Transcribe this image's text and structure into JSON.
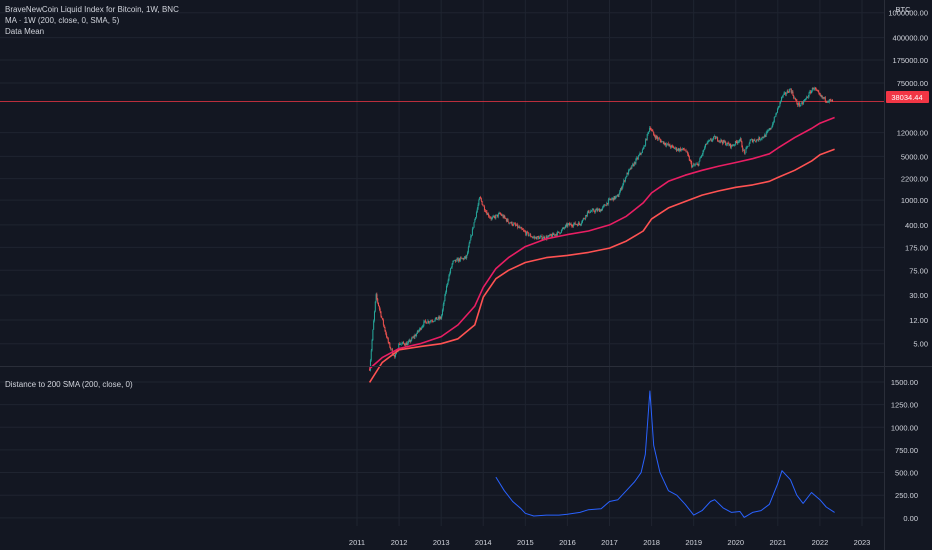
{
  "main_pane": {
    "title": "BraveNewCoin Liquid Index for Bitcoin, 1W, BNC",
    "ma_legend": "MA · 1W (200, close, 0, SMA, 5)",
    "mean_legend": "Data Mean",
    "currency": "BTC",
    "price_label": "38034.44"
  },
  "sub_pane": {
    "legend": "Distance to 200 SMA (200, close, 0)"
  },
  "colors": {
    "background": "#131722",
    "grid": "#1f2430",
    "text": "#d1d4dc",
    "ma_line": "#e91e63",
    "mean_line": "#ff5252",
    "candle_up": "#26a69a",
    "candle_down": "#ef5350",
    "distance_line": "#2962ff",
    "price_line": "#f23645"
  },
  "chart_data": [
    {
      "type": "candlestick",
      "title": "BraveNewCoin Liquid Index for Bitcoin, 1W, BNC",
      "scale": "log",
      "y_ticks": [
        "1000000.00",
        "400000.00",
        "175000.00",
        "75000.00",
        "12000.00",
        "5000.00",
        "2200.00",
        "1000.00",
        "400.00",
        "175.00",
        "75.00",
        "30.00",
        "12.00",
        "5.00"
      ],
      "x_ticks": [
        "2011",
        "2012",
        "2013",
        "2014",
        "2015",
        "2016",
        "2017",
        "2018",
        "2019",
        "2020",
        "2021",
        "2022",
        "2023"
      ],
      "last_price": 38034.44,
      "price": {
        "x": [
          2011.3,
          2011.45,
          2011.6,
          2011.75,
          2011.9,
          2012.0,
          2012.2,
          2012.4,
          2012.6,
          2012.8,
          2013.0,
          2013.15,
          2013.27,
          2013.4,
          2013.6,
          2013.8,
          2013.92,
          2014.0,
          2014.1,
          2014.2,
          2014.4,
          2014.6,
          2014.8,
          2015.0,
          2015.2,
          2015.5,
          2015.8,
          2016.0,
          2016.3,
          2016.5,
          2016.8,
          2017.0,
          2017.2,
          2017.4,
          2017.6,
          2017.8,
          2017.96,
          2018.05,
          2018.2,
          2018.4,
          2018.6,
          2018.8,
          2018.96,
          2019.1,
          2019.3,
          2019.5,
          2019.7,
          2019.9,
          2020.1,
          2020.2,
          2020.35,
          2020.5,
          2020.7,
          2020.85,
          2021.0,
          2021.1,
          2021.3,
          2021.45,
          2021.55,
          2021.7,
          2021.85,
          2022.0,
          2022.15,
          2022.3
        ],
        "close": [
          2,
          30,
          12,
          5,
          3,
          5,
          5,
          7,
          11,
          12,
          13,
          50,
          100,
          110,
          120,
          500,
          1100,
          800,
          600,
          500,
          600,
          450,
          380,
          300,
          250,
          250,
          300,
          400,
          420,
          650,
          700,
          1000,
          1150,
          2500,
          4000,
          6500,
          15000,
          11000,
          9000,
          7500,
          6500,
          6400,
          3500,
          3700,
          8000,
          10000,
          8500,
          7300,
          9500,
          5500,
          9000,
          9200,
          10800,
          15000,
          29000,
          45000,
          60000,
          35000,
          33000,
          45000,
          64000,
          46000,
          40000,
          38034.44
        ]
      },
      "series": [
        {
          "name": "MA · 1W (200, close, 0, SMA, 5)",
          "x": [
            2011.3,
            2011.6,
            2012.0,
            2012.5,
            2013.0,
            2013.4,
            2013.8,
            2014.0,
            2014.3,
            2014.6,
            2015.0,
            2015.5,
            2016.0,
            2016.5,
            2017.0,
            2017.4,
            2017.8,
            2018.0,
            2018.4,
            2018.8,
            2019.2,
            2019.6,
            2020.0,
            2020.4,
            2020.8,
            2021.0,
            2021.4,
            2021.8,
            2022.0,
            2022.35
          ],
          "values": [
            2,
            3,
            4.2,
            5,
            6.5,
            10,
            20,
            40,
            80,
            120,
            180,
            240,
            280,
            320,
            400,
            550,
            900,
            1300,
            2000,
            2500,
            3000,
            3500,
            4000,
            4600,
            5500,
            6800,
            10000,
            14000,
            17000,
            21000
          ]
        },
        {
          "name": "Data Mean",
          "x": [
            2011.3,
            2011.6,
            2012.0,
            2012.5,
            2013.0,
            2013.4,
            2013.8,
            2014.0,
            2014.3,
            2014.6,
            2015.0,
            2015.5,
            2016.0,
            2016.5,
            2017.0,
            2017.4,
            2017.8,
            2018.0,
            2018.4,
            2018.8,
            2019.2,
            2019.6,
            2020.0,
            2020.4,
            2020.8,
            2021.0,
            2021.4,
            2021.8,
            2022.0,
            2022.35
          ],
          "values": [
            1.2,
            2.5,
            4,
            4.5,
            5,
            6,
            10,
            28,
            55,
            75,
            100,
            120,
            130,
            145,
            170,
            220,
            320,
            500,
            750,
            950,
            1200,
            1400,
            1600,
            1750,
            2000,
            2300,
            3000,
            4200,
            5300,
            6500
          ]
        }
      ]
    },
    {
      "type": "line",
      "title": "Distance to 200 SMA (200, close, 0)",
      "y_ticks": [
        "1500.00",
        "1250.00",
        "1000.00",
        "750.00",
        "500.00",
        "250.00",
        "0.00"
      ],
      "x": [
        2014.3,
        2014.5,
        2014.7,
        2014.9,
        2015.0,
        2015.2,
        2015.5,
        2015.8,
        2016.0,
        2016.3,
        2016.5,
        2016.8,
        2017.0,
        2017.2,
        2017.4,
        2017.6,
        2017.75,
        2017.85,
        2017.96,
        2018.05,
        2018.2,
        2018.4,
        2018.6,
        2018.8,
        2019.0,
        2019.2,
        2019.4,
        2019.5,
        2019.7,
        2019.9,
        2020.1,
        2020.2,
        2020.4,
        2020.6,
        2020.8,
        2021.0,
        2021.1,
        2021.3,
        2021.45,
        2021.6,
        2021.8,
        2022.0,
        2022.15,
        2022.35
      ],
      "values": [
        450,
        300,
        180,
        100,
        50,
        20,
        30,
        30,
        40,
        60,
        90,
        100,
        180,
        200,
        300,
        400,
        500,
        700,
        1400,
        800,
        500,
        300,
        250,
        150,
        30,
        80,
        180,
        200,
        110,
        60,
        70,
        5,
        60,
        80,
        150,
        380,
        520,
        420,
        250,
        160,
        280,
        200,
        120,
        60
      ]
    }
  ]
}
